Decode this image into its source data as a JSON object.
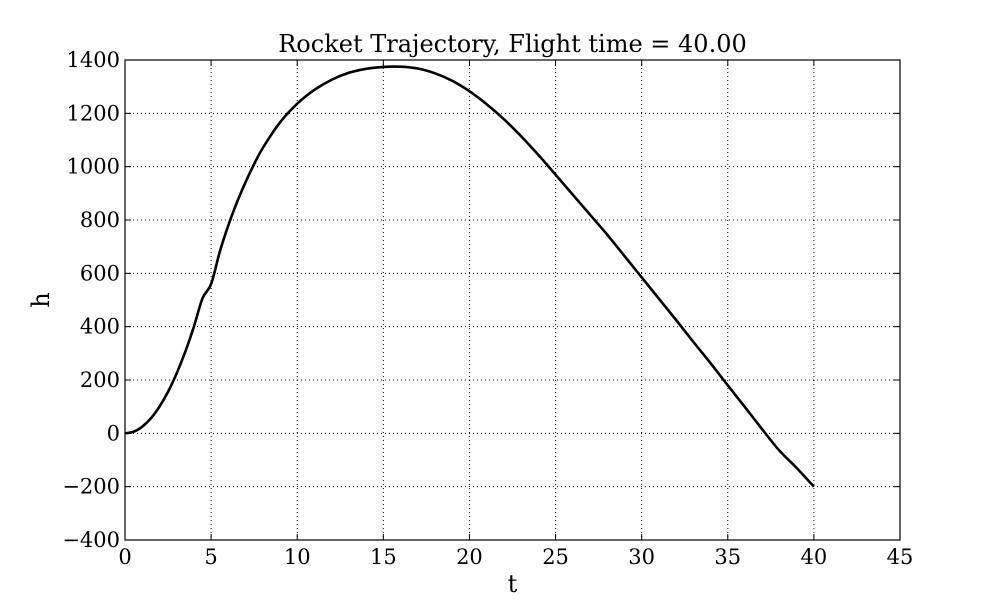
{
  "chart_data": {
    "type": "line",
    "title": "Rocket Trajectory, Flight time = 40.00",
    "xlabel": "t",
    "ylabel": "h",
    "xlim": [
      0,
      45
    ],
    "ylim": [
      -400,
      1400
    ],
    "xticks": [
      0,
      5,
      10,
      15,
      20,
      25,
      30,
      35,
      40,
      45
    ],
    "yticks": [
      -400,
      -200,
      0,
      200,
      400,
      600,
      800,
      1000,
      1200,
      1400
    ],
    "ytick_labels": [
      "−400",
      "−200",
      "0",
      "200",
      "400",
      "600",
      "800",
      "1000",
      "1200",
      "1400"
    ],
    "grid": true,
    "line_color": "#000000",
    "series": [
      {
        "x": [
          0,
          0.5,
          1,
          1.5,
          2,
          2.5,
          3,
          3.5,
          4,
          4.5,
          5,
          5.5,
          6,
          6.5,
          7,
          7.5,
          8,
          9,
          10,
          11,
          12,
          13,
          14,
          15,
          16,
          17,
          18,
          19,
          20,
          21,
          22,
          23,
          24,
          25,
          26,
          27,
          28,
          29,
          30,
          31,
          32,
          33,
          34,
          35,
          36,
          37,
          38,
          39,
          40
        ],
        "y": [
          0,
          6,
          25,
          56,
          100,
          156,
          225,
          306,
          400,
          506,
          560,
          680,
          780,
          866,
          942,
          1010,
          1070,
          1166,
          1236,
          1288,
          1326,
          1352,
          1367,
          1374,
          1375,
          1368,
          1350,
          1322,
          1283,
          1234,
          1178,
          1114,
          1044,
          970,
          895,
          820,
          745,
          665,
          585,
          505,
          425,
          343,
          263,
          180,
          98,
          15,
          -65,
          -130,
          -200
        ]
      }
    ]
  }
}
